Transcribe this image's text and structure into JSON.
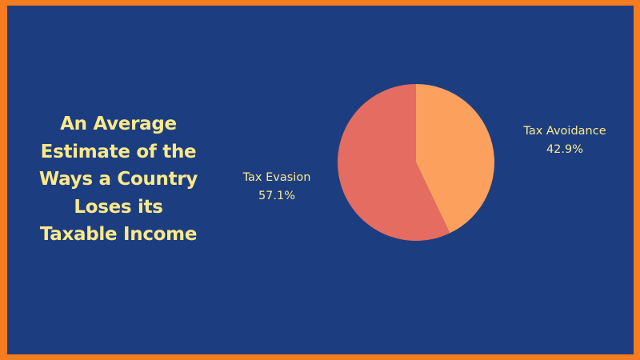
{
  "colors": {
    "border": "#f57d1f",
    "background": "#1c3e80",
    "text": "#fde98a"
  },
  "chart_data": {
    "type": "pie",
    "title": "An Average Estimate of the Ways a Country Loses its Taxable Income",
    "title_lines": [
      "An Average",
      "Estimate of the",
      "Ways a Country",
      "Loses its",
      "Taxable Income"
    ],
    "start_angle_deg": 0,
    "direction": "clockwise",
    "slices": [
      {
        "label": "Tax Avoidance",
        "value": 42.9,
        "value_label": "42.9%",
        "color": "#fca05e"
      },
      {
        "label": "Tax Evasion",
        "value": 57.1,
        "value_label": "57.1%",
        "color": "#e46c60"
      }
    ]
  }
}
